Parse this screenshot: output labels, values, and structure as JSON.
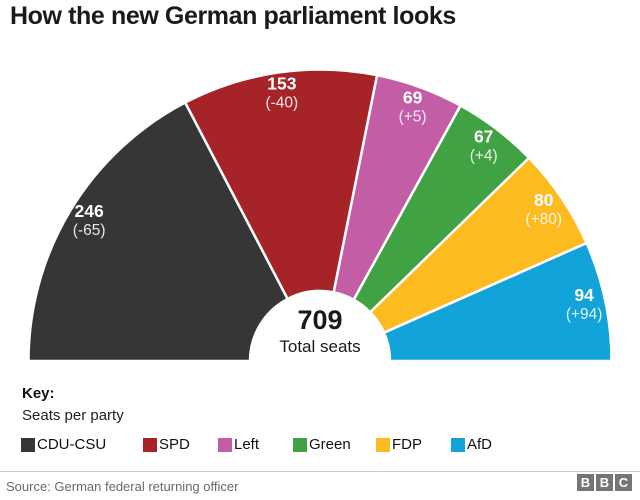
{
  "chart_data": {
    "type": "pie",
    "subtype": "hemicycle",
    "title": "How the new German parliament looks",
    "total": 709,
    "total_label": "Total seats",
    "categories": [
      "CDU-CSU",
      "SPD",
      "Left",
      "Green",
      "FDP",
      "AfD"
    ],
    "values": [
      246,
      153,
      69,
      67,
      80,
      94
    ],
    "changes": [
      -65,
      -40,
      5,
      4,
      80,
      94
    ],
    "change_labels": [
      "(-65)",
      "(-40)",
      "(+5)",
      "(+4)",
      "(+80)",
      "(+94)"
    ],
    "colors": [
      "#363636",
      "#a62428",
      "#c35da5",
      "#41a244",
      "#fcbb1e",
      "#12a3d8"
    ],
    "legend_position": "bottom",
    "grid": false
  },
  "key": {
    "label": "Key:",
    "sublabel": "Seats per party"
  },
  "footer": {
    "source": "Source: German federal returning officer",
    "logo_letters": [
      "B",
      "B",
      "C"
    ]
  }
}
